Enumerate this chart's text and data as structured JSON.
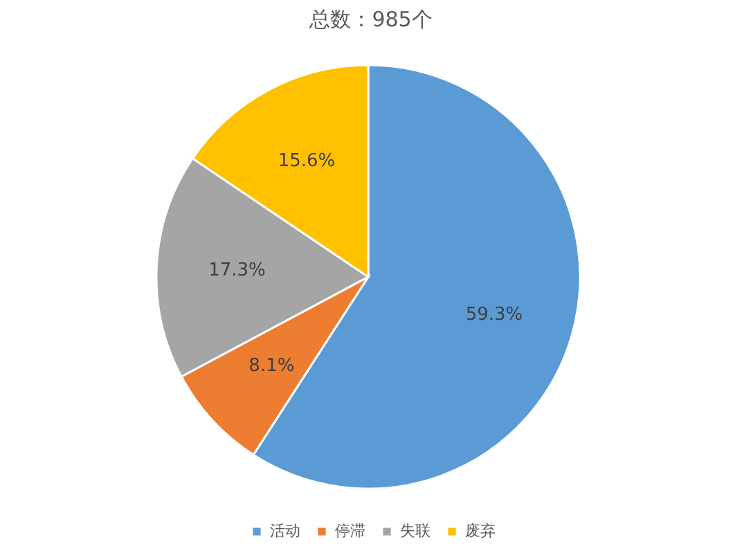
{
  "chart_data": {
    "type": "pie",
    "title": "总数：985个",
    "categories": [
      "活动",
      "停滞",
      "失联",
      "废弃"
    ],
    "values": [
      59.3,
      8.1,
      17.3,
      15.6
    ],
    "colors": [
      "#5b9bd5",
      "#ed7d31",
      "#a5a5a5",
      "#ffc000"
    ],
    "value_labels": [
      "59.3%",
      "8.1%",
      "17.3%",
      "15.6%"
    ],
    "legend": "bottom"
  }
}
